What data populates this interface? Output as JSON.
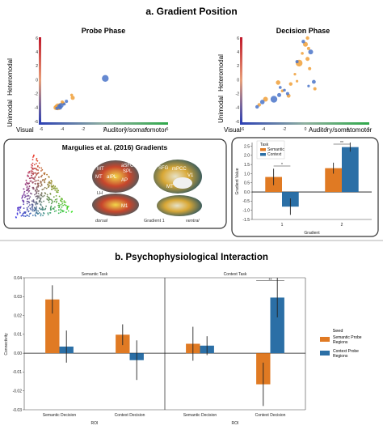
{
  "section_a": {
    "title": "a. Gradient Position",
    "probe": {
      "title": "Probe Phase",
      "ylabel_top": "Heteromodal",
      "ylabel_bottom": "Unimodal",
      "xlabel_left": "Visual",
      "xlabel_right": "Auditory/somatomotor",
      "yticks": [
        "6",
        "4",
        "2",
        "0",
        "-2",
        "-4",
        "-6"
      ],
      "xticks": [
        "-6",
        "-4",
        "-2",
        "0",
        "2",
        "4",
        "6"
      ]
    },
    "decision": {
      "title": "Decision Phase",
      "ylabel_top": "Heteromodal",
      "ylabel_bottom": "Unimodal",
      "xlabel_left": "Visual",
      "xlabel_right": "Auditory/somatomotor",
      "yticks": [
        "6",
        "4",
        "2",
        "0",
        "-2",
        "-4",
        "-6"
      ],
      "xticks": [
        "-6",
        "-4",
        "-2",
        "0",
        "2",
        "4",
        "6"
      ]
    },
    "margulies": {
      "title": "Margulies et al. (2016) Gradients",
      "labels": [
        "MT",
        "aSFG",
        "SPL",
        "MT",
        "aIPL",
        "AP",
        "SFG",
        "mPCC",
        "A1",
        "MT",
        "V1",
        "M1",
        "LH",
        "dorsal",
        "ventral",
        "Gradient 1"
      ]
    }
  },
  "section_b": {
    "title": "b. Psychophysiological Interaction",
    "legend": {
      "title": "Seed",
      "entries": [
        "Semantic Probe Regions",
        "Context Probe Regions"
      ]
    }
  },
  "colors": {
    "semantic": "#e07a23",
    "context": "#2b6fa6",
    "probe_orange": "#f0a03a",
    "probe_blue": "#4a74c9"
  },
  "chart_data": [
    {
      "id": "probe",
      "type": "scatter",
      "title": "Probe Phase",
      "xlim": [
        -6,
        6
      ],
      "ylim": [
        -6,
        6
      ],
      "series": [
        {
          "name": "",
          "color": "orange",
          "points": [
            [
              -4.2,
              -3.6
            ],
            [
              -4.6,
              -4.0
            ],
            [
              -3.9,
              -3.4
            ],
            [
              -3.1,
              -2.2
            ],
            [
              -3.0,
              -2.6
            ],
            [
              -4.4,
              -3.9
            ],
            [
              -4.0,
              -3.2
            ]
          ]
        },
        {
          "name": "",
          "color": "blue",
          "points": [
            [
              -4.3,
              -3.8
            ],
            [
              -4.1,
              -3.7
            ],
            [
              -4.5,
              -4.1
            ],
            [
              -3.8,
              -3.5
            ],
            [
              -4.2,
              -4.0
            ],
            [
              0.1,
              0.2
            ],
            [
              -3.6,
              -3.1
            ]
          ]
        }
      ]
    },
    {
      "id": "decision",
      "type": "scatter",
      "title": "Decision Phase",
      "xlim": [
        -6,
        6
      ],
      "ylim": [
        -6,
        6
      ],
      "series": [
        {
          "name": "",
          "color": "orange",
          "points": [
            [
              0.2,
              6.0
            ],
            [
              0.0,
              5.1
            ],
            [
              0.3,
              4.5
            ],
            [
              -0.3,
              3.8
            ],
            [
              0.2,
              3.0
            ],
            [
              -0.6,
              2.4
            ],
            [
              0.4,
              1.6
            ],
            [
              -1.0,
              0.8
            ],
            [
              -2.6,
              -0.4
            ],
            [
              -1.4,
              -0.6
            ],
            [
              -2.2,
              -1.6
            ],
            [
              -1.6,
              -2.3
            ],
            [
              -3.8,
              -2.8
            ],
            [
              -4.4,
              -3.6
            ],
            [
              -0.8,
              -0.2
            ],
            [
              0.9,
              -1.3
            ]
          ]
        },
        {
          "name": "",
          "color": "blue",
          "points": [
            [
              -0.2,
              5.5
            ],
            [
              0.5,
              4.0
            ],
            [
              -0.8,
              2.6
            ],
            [
              -2.0,
              -1.5
            ],
            [
              -2.5,
              -2.2
            ],
            [
              -3.0,
              -2.8
            ],
            [
              -1.7,
              -2.0
            ],
            [
              0.3,
              -0.9
            ],
            [
              -4.1,
              -3.2
            ],
            [
              -4.6,
              -3.9
            ],
            [
              -2.4,
              -1.1
            ],
            [
              0.8,
              -0.3
            ]
          ]
        }
      ]
    },
    {
      "id": "gradient_value",
      "type": "bar",
      "xlabel": "Gradient",
      "ylabel": "Gradient Value",
      "categories": [
        "1",
        "2"
      ],
      "ylim": [
        -1.5,
        2.7
      ],
      "yticks": [
        "2.5",
        "2.0",
        "1.5",
        "1.0",
        "0.5",
        "0.0",
        "-0.5",
        "-1.0",
        "-1.5"
      ],
      "legend_title": "Task",
      "series": [
        {
          "name": "Semantic",
          "values": [
            0.82,
            1.3
          ],
          "err": [
            0.45,
            0.3
          ]
        },
        {
          "name": "Context",
          "values": [
            -0.8,
            2.45
          ],
          "err": [
            0.45,
            0.25
          ]
        }
      ],
      "sig": [
        "*",
        "**"
      ]
    },
    {
      "id": "semantic_task",
      "type": "bar",
      "title": "Semantic Task",
      "xlabel": "ROI",
      "ylabel": "Connectivity",
      "categories": [
        "Semantic Decision",
        "Context Decision"
      ],
      "ylim": [
        -0.03,
        0.04
      ],
      "yticks": [
        "0.04",
        "0.03",
        "0.02",
        "0.01",
        "0.00",
        "-0.01",
        "-0.02",
        "-0.03"
      ],
      "series": [
        {
          "name": "Semantic Probe Regions",
          "values": [
            0.0285,
            0.0098
          ],
          "err": [
            0.0075,
            0.0055
          ]
        },
        {
          "name": "Context Probe Regions",
          "values": [
            0.0035,
            -0.0037
          ],
          "err": [
            0.0085,
            0.0105
          ]
        }
      ]
    },
    {
      "id": "context_task",
      "type": "bar",
      "title": "Context Task",
      "xlabel": "ROI",
      "categories": [
        "Semantic Decision",
        "Context Decision"
      ],
      "ylim": [
        -0.03,
        0.04
      ],
      "series": [
        {
          "name": "Semantic Probe Regions",
          "values": [
            0.005,
            -0.0165
          ],
          "err": [
            0.009,
            0.0115
          ]
        },
        {
          "name": "Context Probe Regions",
          "values": [
            0.004,
            0.0295
          ],
          "err": [
            0.005,
            0.0105
          ]
        }
      ],
      "sig": [
        "**"
      ]
    }
  ]
}
